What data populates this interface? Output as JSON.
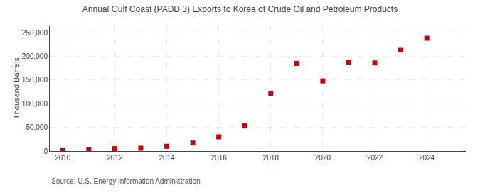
{
  "chart_data": {
    "type": "scatter",
    "title": "Annual Gulf Coast (PADD 3) Exports to Korea of Crude Oil and Petroleum Products",
    "ylabel": "Thousand Barrels",
    "annotations": [
      "Source: U.S. Energy Information Administration"
    ],
    "x": [
      2010,
      2011,
      2012,
      2013,
      2014,
      2015,
      2016,
      2017,
      2018,
      2019,
      2020,
      2021,
      2022,
      2023,
      2024
    ],
    "values": [
      1000,
      2500,
      5000,
      6000,
      10000,
      17000,
      30000,
      53000,
      122000,
      185000,
      148000,
      188000,
      186000,
      214000,
      238000
    ],
    "color": "#cc0000",
    "marker": "square",
    "xlim": [
      2009.5,
      2025.5
    ],
    "xticks": [
      2010,
      2012,
      2014,
      2016,
      2018,
      2020,
      2022,
      2024
    ],
    "ylim": [
      0,
      265000
    ],
    "yticks": [
      0,
      {
        "value": 50000,
        "label": "50,000"
      },
      {
        "value": 100000,
        "label": "100,000"
      },
      {
        "value": 150000,
        "label": "150,000"
      },
      {
        "value": 200000,
        "label": "200,000"
      },
      {
        "value": 250000,
        "label": "250,000"
      }
    ],
    "grid": true
  }
}
